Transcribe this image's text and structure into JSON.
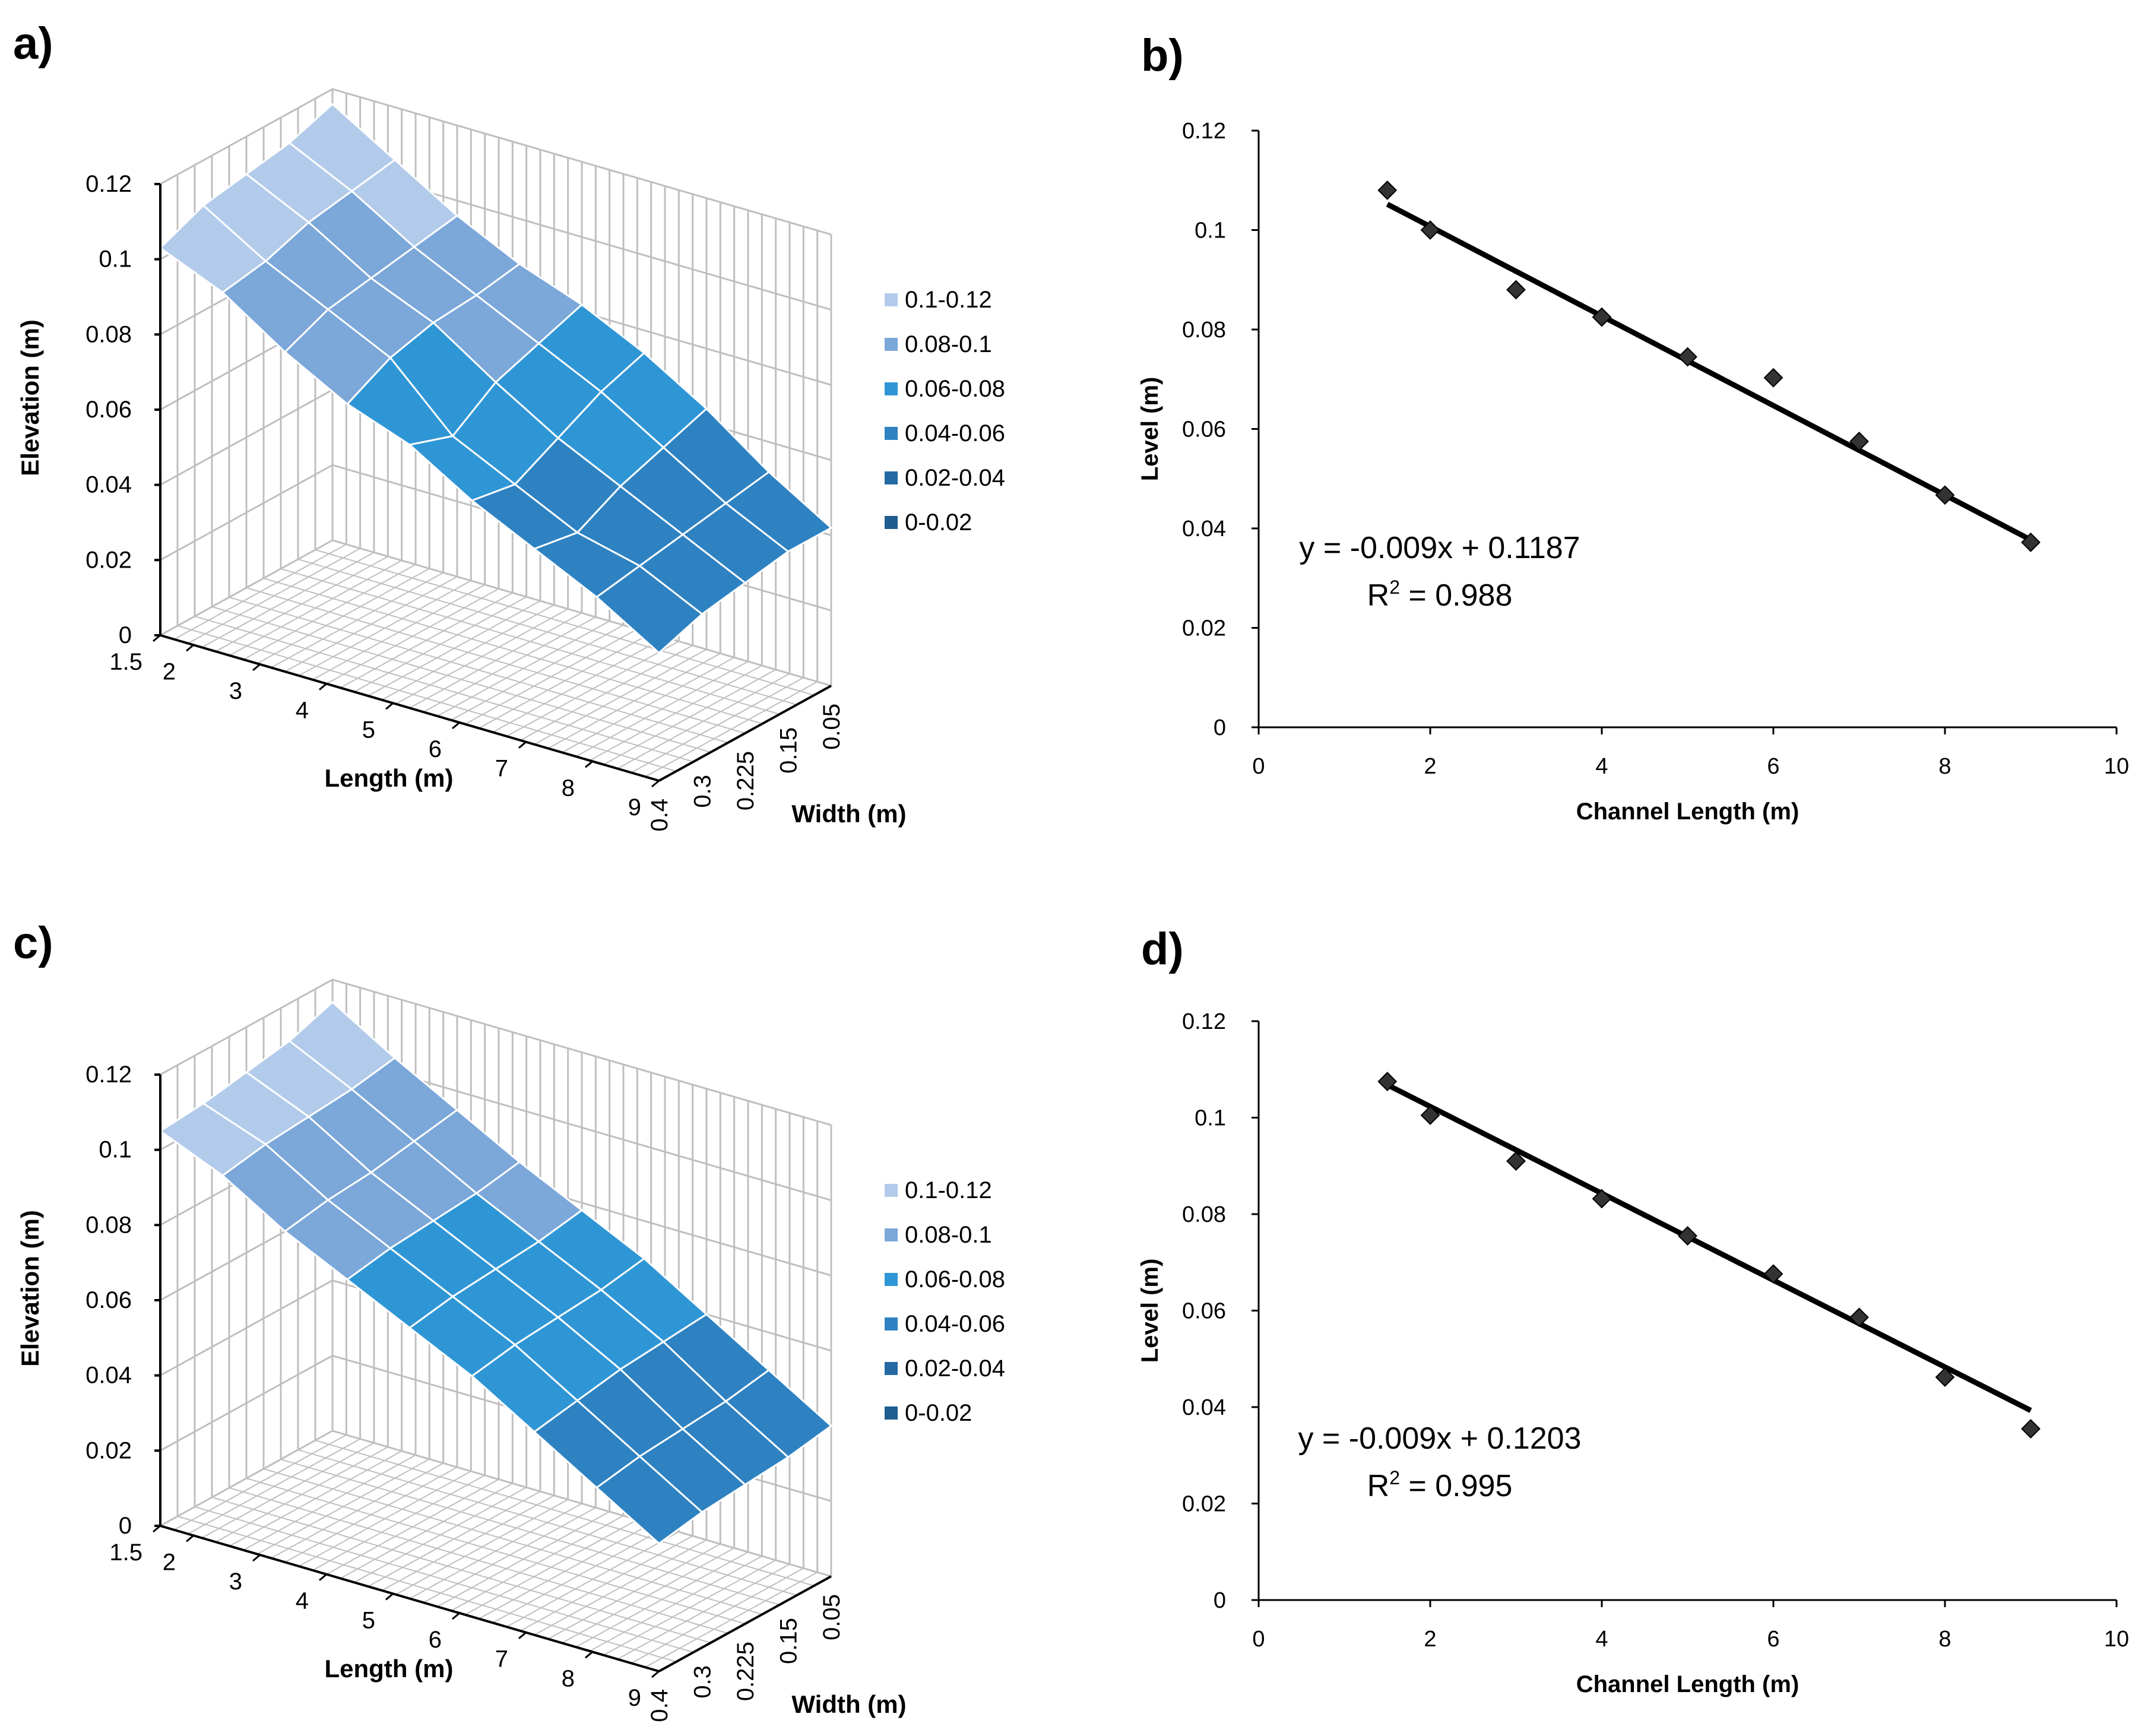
{
  "panels": {
    "a": {
      "label": "a)"
    },
    "b": {
      "label": "b)"
    },
    "c": {
      "label": "c)"
    },
    "d": {
      "label": "d)"
    }
  },
  "colors": {
    "bands": [
      "#1f5d8f",
      "#2469a4",
      "#2e82c2",
      "#2f96d6",
      "#7ba7d9",
      "#b3cbea"
    ],
    "axis": "#000000",
    "grid": "#bfbfbf",
    "marker": "#333333",
    "trendline": "#000000"
  },
  "chart_data": [
    {
      "panel": "a",
      "type": "surface",
      "zlabel": "Elevation (m)",
      "xlabel": "Length (m)",
      "ylabel": "Width (m)",
      "zlim": [
        0,
        0.12
      ],
      "zticks": [
        "0",
        "0.02",
        "0.04",
        "0.06",
        "0.08",
        "0.1",
        "0.12"
      ],
      "length_ticks": [
        "1.5",
        "2",
        "3",
        "4",
        "5",
        "6",
        "7",
        "8",
        "9"
      ],
      "length_values": [
        1.5,
        2,
        3,
        4,
        5,
        6,
        7,
        8,
        9
      ],
      "width_ticks": [
        "0.4",
        "0.3",
        "0.225",
        "0.15",
        "0.05"
      ],
      "width_values": [
        0.4,
        0.3,
        0.225,
        0.15,
        0.05
      ],
      "legend": [
        "0.1-0.12",
        "0.08-0.1",
        "0.06-0.08",
        "0.04-0.06",
        "0.02-0.04",
        "0-0.02"
      ],
      "z": [
        [
          0.103,
          0.096,
          0.085,
          0.076,
          0.07,
          0.06,
          0.052,
          0.044,
          0.034
        ],
        [
          0.108,
          0.098,
          0.09,
          0.082,
          0.066,
          0.058,
          0.05,
          0.046,
          0.038
        ],
        [
          0.11,
          0.102,
          0.092,
          0.085,
          0.074,
          0.064,
          0.056,
          0.048,
          0.04
        ],
        [
          0.112,
          0.104,
          0.094,
          0.086,
          0.078,
          0.07,
          0.06,
          0.05,
          0.042
        ],
        [
          0.116,
          0.106,
          0.096,
          0.088,
          0.082,
          0.074,
          0.064,
          0.052,
          0.042
        ]
      ]
    },
    {
      "panel": "b",
      "type": "scatter",
      "xlabel": "Channel Length (m)",
      "ylabel": "Level (m)",
      "xlim": [
        0,
        10
      ],
      "ylim": [
        0,
        0.12
      ],
      "xticks": [
        "0",
        "2",
        "4",
        "6",
        "8",
        "10"
      ],
      "yticks": [
        "0",
        "0.02",
        "0.04",
        "0.06",
        "0.08",
        "0.1",
        "0.12"
      ],
      "x": [
        1.5,
        2,
        3,
        4,
        5,
        6,
        7,
        8,
        9
      ],
      "y": [
        0.108,
        0.1,
        0.088,
        0.0825,
        0.0745,
        0.0703,
        0.0575,
        0.0467,
        0.0372
      ],
      "trend": {
        "slope": -0.009,
        "intercept": 0.1187,
        "x_range": [
          1.5,
          9
        ]
      },
      "equation": "y = -0.009x + 0.1187",
      "r2_label": "R",
      "r2_sup": "2",
      "r2_value": " = 0.988"
    },
    {
      "panel": "c",
      "type": "surface",
      "zlabel": "Elevation (m)",
      "xlabel": "Length (m)",
      "ylabel": "Width (m)",
      "zlim": [
        0,
        0.12
      ],
      "zticks": [
        "0",
        "0.02",
        "0.04",
        "0.06",
        "0.08",
        "0.1",
        "0.12"
      ],
      "length_ticks": [
        "1.5",
        "2",
        "3",
        "4",
        "5",
        "6",
        "7",
        "8",
        "9"
      ],
      "length_values": [
        1.5,
        2,
        3,
        4,
        5,
        6,
        7,
        8,
        9
      ],
      "width_ticks": [
        "0.4",
        "0.3",
        "0.225",
        "0.15",
        "0.05"
      ],
      "width_values": [
        0.4,
        0.3,
        0.225,
        0.15,
        0.05
      ],
      "legend": [
        "0.1-0.12",
        "0.08-0.1",
        "0.06-0.08",
        "0.04-0.06",
        "0.02-0.04",
        "0-0.02"
      ],
      "z": [
        [
          0.105,
          0.098,
          0.088,
          0.08,
          0.072,
          0.064,
          0.054,
          0.044,
          0.034
        ],
        [
          0.106,
          0.1,
          0.09,
          0.082,
          0.074,
          0.066,
          0.056,
          0.046,
          0.036
        ],
        [
          0.108,
          0.101,
          0.091,
          0.083,
          0.075,
          0.067,
          0.058,
          0.047,
          0.037
        ],
        [
          0.11,
          0.102,
          0.093,
          0.084,
          0.076,
          0.068,
          0.059,
          0.048,
          0.038
        ],
        [
          0.114,
          0.104,
          0.095,
          0.086,
          0.078,
          0.07,
          0.06,
          0.05,
          0.04
        ]
      ]
    },
    {
      "panel": "d",
      "type": "scatter",
      "xlabel": "Channel Length (m)",
      "ylabel": "Level (m)",
      "xlim": [
        0,
        10
      ],
      "ylim": [
        0,
        0.12
      ],
      "xticks": [
        "0",
        "2",
        "4",
        "6",
        "8",
        "10"
      ],
      "yticks": [
        "0",
        "0.02",
        "0.04",
        "0.06",
        "0.08",
        "0.1",
        "0.12"
      ],
      "x": [
        1.5,
        2,
        3,
        4,
        5,
        6,
        7,
        8,
        9
      ],
      "y": [
        0.1075,
        0.1005,
        0.091,
        0.0832,
        0.0755,
        0.0676,
        0.0586,
        0.0462,
        0.0355
      ],
      "trend": {
        "slope": -0.009,
        "intercept": 0.1203,
        "x_range": [
          1.5,
          9
        ]
      },
      "equation": "y = -0.009x + 0.1203",
      "r2_label": "R",
      "r2_sup": "2",
      "r2_value": " = 0.995"
    }
  ]
}
